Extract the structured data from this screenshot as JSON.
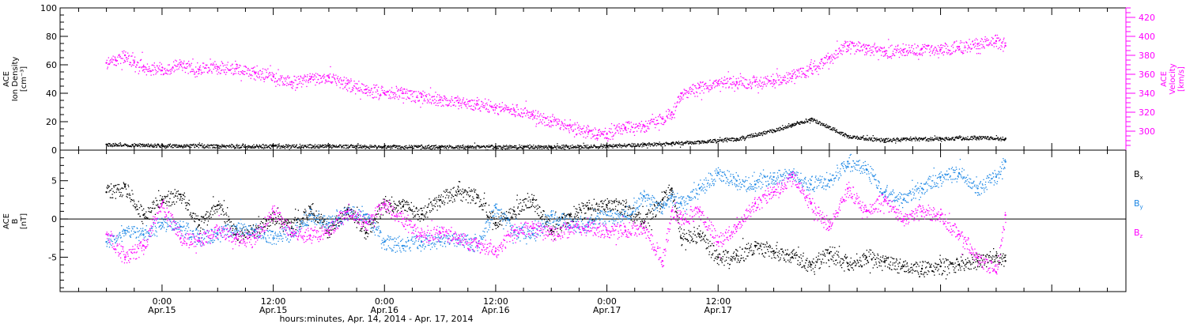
{
  "chart_data": [
    {
      "type": "scatter",
      "panel": "top",
      "ylabel_left": [
        "ACE",
        "Ion Density",
        "[cm⁻³]"
      ],
      "ylabel_right": [
        "ACE",
        "Velocity",
        "[km/s]"
      ],
      "ylim_left": [
        0,
        100
      ],
      "yticks_left": [
        "0",
        "20",
        "40",
        "60",
        "80",
        "100"
      ],
      "ylim_right": [
        280,
        430
      ],
      "yticks_right": [
        "300",
        "320",
        "340",
        "360",
        "380",
        "400",
        "420"
      ],
      "colors": {
        "density": "#000000",
        "velocity": "#ff00ff"
      },
      "series": [
        {
          "axis": "left",
          "color": "#000000",
          "x": [
            -6,
            0,
            6,
            12,
            18,
            24,
            30,
            36,
            42,
            48,
            52,
            55,
            58,
            62,
            66,
            68,
            70,
            74,
            78,
            80,
            84,
            88,
            91
          ],
          "values": [
            4,
            3.5,
            3,
            3,
            3,
            2.5,
            2.5,
            2.5,
            2.5,
            3,
            4,
            5,
            6,
            8,
            14,
            18,
            22,
            10,
            7,
            8,
            8,
            9,
            8
          ]
        },
        {
          "axis": "right",
          "color": "#ff00ff",
          "x": [
            -6,
            -5,
            -4,
            -3,
            -2,
            0,
            2,
            4,
            6,
            8,
            10,
            12,
            14,
            16,
            18,
            20,
            22,
            24,
            26,
            28,
            30,
            32,
            34,
            36,
            38,
            40,
            42,
            44,
            46,
            47,
            48,
            50,
            52,
            54,
            55,
            56,
            58,
            60,
            62,
            64,
            66,
            68,
            70,
            72,
            74,
            76,
            78,
            80,
            82,
            84,
            86,
            88,
            90,
            91
          ],
          "values": [
            372,
            375,
            380,
            373,
            368,
            364,
            370,
            365,
            368,
            366,
            362,
            358,
            352,
            355,
            357,
            350,
            344,
            340,
            340,
            336,
            333,
            330,
            329,
            325,
            322,
            317,
            310,
            306,
            299,
            296,
            297,
            304,
            306,
            313,
            320,
            340,
            346,
            350,
            352,
            352,
            354,
            358,
            366,
            378,
            390,
            387,
            384,
            386,
            387,
            386,
            389,
            392,
            395,
            390
          ]
        }
      ]
    },
    {
      "type": "scatter",
      "panel": "bottom",
      "ylabel_left": [
        "ACE",
        "B",
        "[nT]"
      ],
      "ylim": [
        -9.5,
        9
      ],
      "yticks": [
        "-5",
        "0",
        "5"
      ],
      "zero_line": true,
      "legend_position": "right",
      "series": [
        {
          "name": "Bx",
          "name_base": "B",
          "name_sub": "x",
          "color": "#000000",
          "x": [
            -6,
            -4,
            -2,
            0,
            2,
            4,
            6,
            8,
            10,
            12,
            14,
            16,
            18,
            20,
            22,
            24,
            26,
            28,
            30,
            32,
            34,
            36,
            38,
            40,
            42,
            44,
            46,
            48,
            50,
            52,
            54,
            55,
            56,
            58,
            60,
            62,
            64,
            66,
            68,
            70,
            72,
            74,
            76,
            78,
            80,
            82,
            84,
            86,
            88,
            90,
            91
          ],
          "values": [
            3.5,
            4.2,
            0.5,
            2.5,
            3.2,
            -0.8,
            1.8,
            -2,
            -1.5,
            0,
            -1.2,
            1.4,
            -1.8,
            1.2,
            -1.8,
            2,
            1.6,
            0.6,
            2.5,
            3.6,
            2.8,
            -0.5,
            1,
            2.5,
            -1.5,
            0.5,
            1.4,
            1.8,
            1.6,
            -0.5,
            2.5,
            4,
            -2.5,
            -2,
            -5,
            -4.8,
            -3.5,
            -4.2,
            -5,
            -6,
            -4.5,
            -5.8,
            -5,
            -5.5,
            -6.2,
            -6.5,
            -6.2,
            -6,
            -5.5,
            -4.8,
            -5.5
          ]
        },
        {
          "name": "By",
          "name_base": "B",
          "name_sub": "y",
          "color": "#1e88e5",
          "x": [
            -6,
            -4,
            -2,
            0,
            2,
            4,
            6,
            8,
            10,
            12,
            14,
            16,
            18,
            20,
            22,
            24,
            26,
            28,
            30,
            32,
            34,
            36,
            38,
            40,
            42,
            44,
            46,
            48,
            50,
            52,
            54,
            55,
            56,
            58,
            60,
            62,
            64,
            66,
            68,
            70,
            72,
            74,
            76,
            78,
            80,
            82,
            84,
            86,
            88,
            90,
            91
          ],
          "values": [
            -3,
            -1.5,
            -2,
            -0.5,
            -1,
            -2.5,
            -2,
            -1,
            -1.5,
            -2.5,
            -1.8,
            0.5,
            -0.5,
            0.8,
            0.6,
            -3,
            -3.5,
            -3,
            -3,
            -2.5,
            -3.5,
            1.5,
            -1.5,
            -2,
            0.5,
            -0.8,
            -0.5,
            0.5,
            0.3,
            3,
            1.5,
            3,
            2,
            4,
            6,
            5,
            4.5,
            5.5,
            5.8,
            4.5,
            5,
            7.5,
            6.5,
            3.5,
            2.5,
            4,
            5.5,
            6,
            4,
            5.5,
            7.5
          ]
        },
        {
          "name": "Bz",
          "name_base": "B",
          "name_sub": "z",
          "color": "#ff00ff",
          "x": [
            -6,
            -4,
            -2,
            0,
            2,
            4,
            6,
            8,
            10,
            12,
            14,
            16,
            18,
            20,
            22,
            24,
            26,
            28,
            30,
            32,
            34,
            36,
            38,
            40,
            42,
            44,
            46,
            48,
            50,
            52,
            54,
            55,
            56,
            58,
            60,
            62,
            64,
            66,
            68,
            70,
            72,
            74,
            76,
            78,
            80,
            82,
            84,
            86,
            88,
            90,
            91
          ],
          "values": [
            -2,
            -5,
            -3.5,
            2,
            -2.5,
            -2.8,
            -1.5,
            -2.5,
            -2.5,
            1,
            -1.8,
            -2.2,
            -1.5,
            1,
            -0.5,
            2,
            0,
            -2.2,
            -1.8,
            -2.5,
            -3.5,
            -4.2,
            -1.5,
            -1.2,
            -2,
            -1.2,
            -1,
            -1.5,
            -1.5,
            -1.2,
            -5.5,
            1,
            0,
            1,
            -3,
            -1,
            2,
            3.5,
            5.5,
            2,
            -1,
            4,
            1,
            2.5,
            0,
            1,
            0.5,
            -2,
            -5,
            -7,
            0.5
          ]
        }
      ]
    },
    {
      "type": "axis",
      "role": "shared-time-axis",
      "xlim_hours": [
        -11,
        104
      ],
      "xticks": [
        {
          "hour": 0,
          "time": "0:00",
          "date": "Apr.15"
        },
        {
          "hour": 12,
          "time": "12:00",
          "date": "Apr.15"
        },
        {
          "hour": 24,
          "time": "0:00",
          "date": "Apr.16"
        },
        {
          "hour": 36,
          "time": "12:00",
          "date": "Apr.16"
        },
        {
          "hour": 48,
          "time": "0:00",
          "date": "Apr.17"
        },
        {
          "hour": 60,
          "time": "12:00",
          "date": "Apr.17"
        }
      ],
      "xlabel": "hours:minutes, Apr. 14, 2014 - Apr. 17, 2014"
    }
  ]
}
